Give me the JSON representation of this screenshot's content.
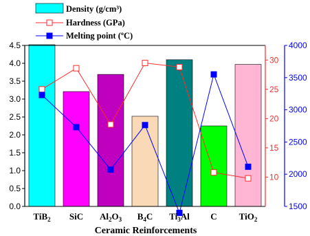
{
  "chart_data": {
    "type": "bar",
    "xlabel": "Ceramic Reinforcements",
    "categories": [
      {
        "base": "TiB",
        "sub": "2",
        "after": ""
      },
      {
        "base": "SiC",
        "sub": "",
        "after": ""
      },
      {
        "base": "Al",
        "sub": "2",
        "after": "O",
        "sub2": "3"
      },
      {
        "base": "B",
        "sub": "4",
        "after": "C"
      },
      {
        "base": "Ti",
        "sub": "3",
        "after": "Al"
      },
      {
        "base": "C",
        "sub": "",
        "after": ""
      },
      {
        "base": "TiO",
        "sub": "2",
        "after": ""
      }
    ],
    "series": [
      {
        "name": "Density (g/cm³)",
        "kind": "bar",
        "axis": "left",
        "values": [
          4.52,
          3.21,
          3.69,
          2.52,
          4.1,
          2.25,
          3.97
        ],
        "colors": [
          "#00FFFF",
          "#FF00FF",
          "#BF00BF",
          "#FAD9B6",
          "#008080",
          "#00FF00",
          "#FFB6D5"
        ]
      },
      {
        "name": "Hardness (GPa)",
        "kind": "line",
        "axis": "right1",
        "color": "#FF2A2A",
        "marker": "open-square",
        "values": [
          25.0,
          28.6,
          19.0,
          29.5,
          28.8,
          10.8,
          9.8
        ]
      },
      {
        "name": "Melting point (ºC)",
        "kind": "line",
        "axis": "right2",
        "color": "#0000FF",
        "marker": "filled-square",
        "values": [
          3230,
          2730,
          2072,
          2763,
          1400,
          3550,
          2116
        ]
      }
    ],
    "axes": {
      "left": {
        "min": 0,
        "max": 4.5,
        "ticks": [
          "0.0",
          "0.5",
          "1.0",
          "1.5",
          "2.0",
          "2.5",
          "3.0",
          "3.5",
          "4.0",
          "4.5"
        ],
        "tickValues": [
          0,
          0.5,
          1,
          1.5,
          2,
          2.5,
          3,
          3.5,
          4,
          4.5
        ],
        "color": "#000000"
      },
      "right1": {
        "min": 5,
        "max": 32.5,
        "ticks": [
          "10",
          "15",
          "20",
          "25",
          "30"
        ],
        "tickValues": [
          10,
          15,
          20,
          25,
          30
        ],
        "color": "#FF2A2A"
      },
      "right2": {
        "min": 1500,
        "max": 4000,
        "ticks": [
          "1500",
          "2000",
          "2500",
          "3000",
          "3500",
          "4000"
        ],
        "tickValues": [
          1500,
          2000,
          2500,
          3000,
          3500,
          4000
        ],
        "color": "#0000FF"
      }
    },
    "legend": {
      "position": "top-center"
    }
  }
}
